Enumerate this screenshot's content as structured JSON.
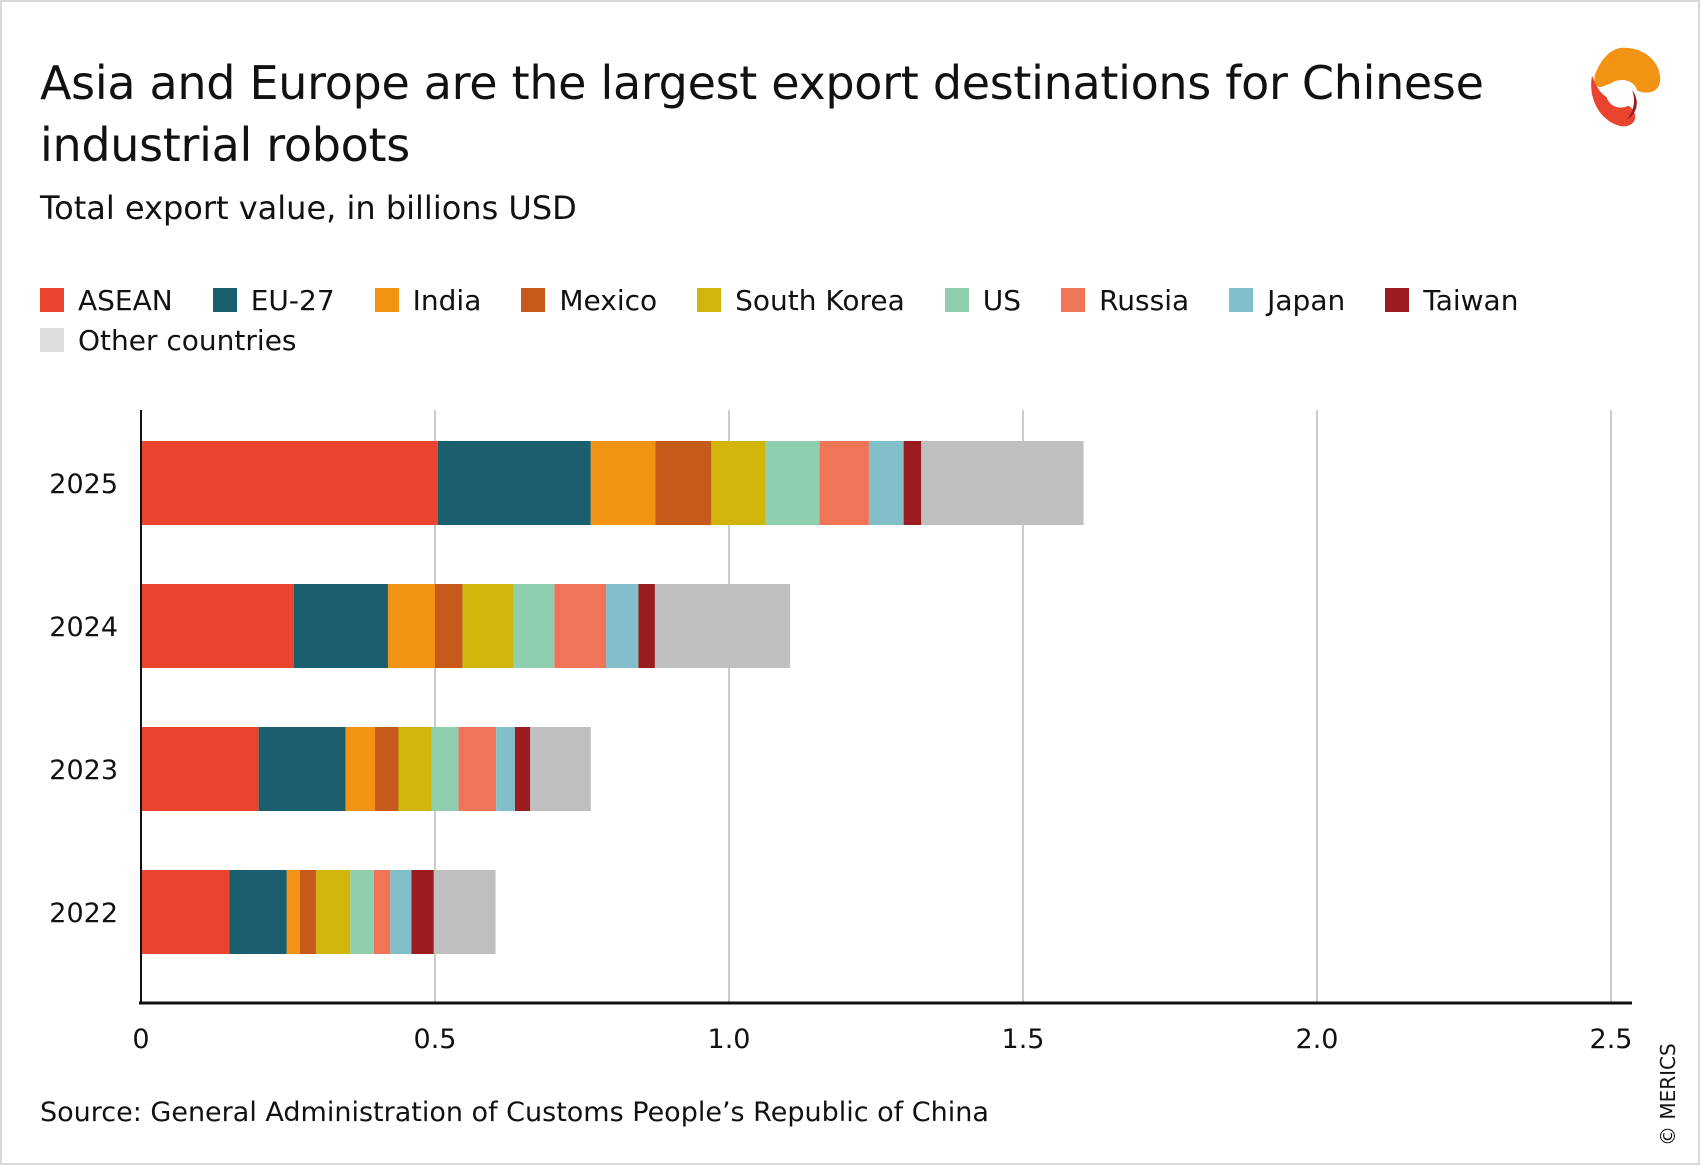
{
  "title": "Asia and Europe are the largest export destinations for Chinese industrial robots",
  "subtitle": "Total export value, in billions USD",
  "source": "Source: General Administration of Customs People’s Republic of China",
  "copyright": "© MERICS",
  "legend": [
    {
      "label": "ASEAN",
      "color": "#e8442e"
    },
    {
      "label": "EU-27",
      "color": "#1b5f6e"
    },
    {
      "label": "India",
      "color": "#f39313"
    },
    {
      "label": "Mexico",
      "color": "#c55a1b"
    },
    {
      "label": "South Korea",
      "color": "#d1b50a"
    },
    {
      "label": "US",
      "color": "#8fcfaf"
    },
    {
      "label": "Russia",
      "color": "#ef7559"
    },
    {
      "label": "Japan",
      "color": "#82bfcb"
    },
    {
      "label": "Taiwan",
      "color": "#9b1c1f"
    },
    {
      "label": "Other countries",
      "color": "#dcdcdc"
    }
  ],
  "chart_data": {
    "type": "bar",
    "orientation": "horizontal",
    "stacked": true,
    "title": "Asia and Europe are the largest export destinations for Chinese industrial robots",
    "subtitle": "Total export value, in billions USD",
    "categories": [
      "2025",
      "2024",
      "2023",
      "2022"
    ],
    "x_ticks": [
      "0",
      "0.5",
      "1.0",
      "1.5",
      "2.0",
      "2.5"
    ],
    "xlim": [
      0,
      2.5
    ],
    "grid": true,
    "legend_position": "top",
    "series": [
      {
        "name": "ASEAN",
        "color": "#e8442e",
        "values": [
          0.505,
          0.26,
          0.2,
          0.15
        ]
      },
      {
        "name": "EU-27",
        "color": "#1b5f6e",
        "values": [
          0.26,
          0.16,
          0.148,
          0.098
        ]
      },
      {
        "name": "India",
        "color": "#f39313",
        "values": [
          0.11,
          0.08,
          0.05,
          0.022
        ]
      },
      {
        "name": "Mexico",
        "color": "#c55a1b",
        "values": [
          0.095,
          0.047,
          0.04,
          0.028
        ]
      },
      {
        "name": "South Korea",
        "color": "#d1b50a",
        "values": [
          0.092,
          0.087,
          0.056,
          0.058
        ]
      },
      {
        "name": "US",
        "color": "#8fcfaf",
        "values": [
          0.092,
          0.069,
          0.046,
          0.04
        ]
      },
      {
        "name": "Russia",
        "color": "#ef7559",
        "values": [
          0.084,
          0.088,
          0.064,
          0.028
        ]
      },
      {
        "name": "Japan",
        "color": "#82bfcb",
        "values": [
          0.059,
          0.055,
          0.032,
          0.036
        ]
      },
      {
        "name": "Taiwan",
        "color": "#9b1c1f",
        "values": [
          0.03,
          0.028,
          0.026,
          0.038
        ]
      },
      {
        "name": "Other countries",
        "color": "#c0bfbf",
        "values": [
          0.276,
          0.23,
          0.103,
          0.105
        ]
      }
    ]
  }
}
